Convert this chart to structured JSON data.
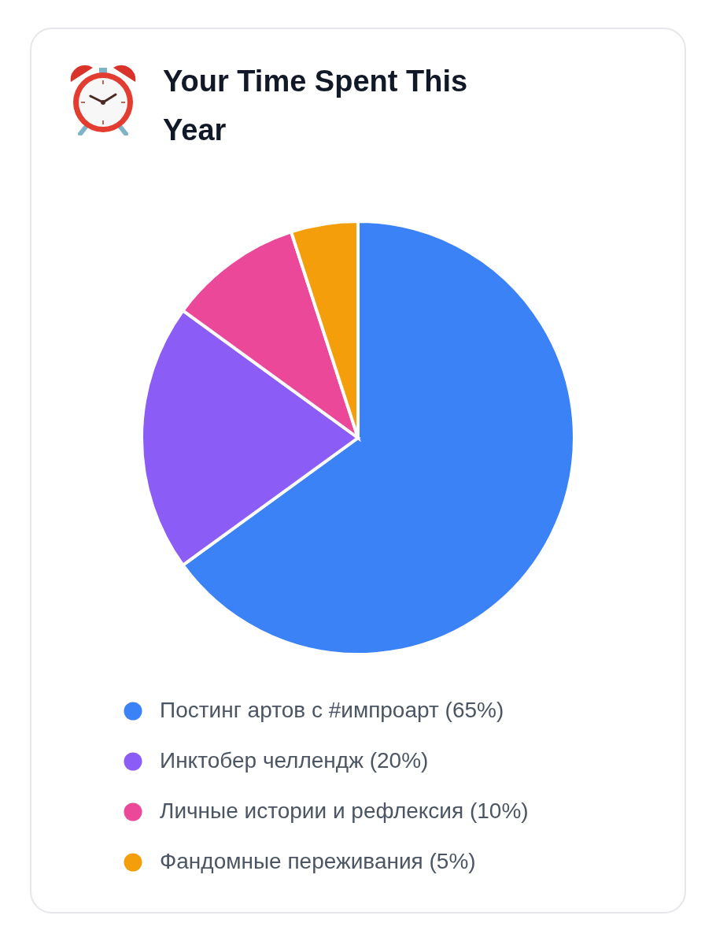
{
  "chart_data": {
    "type": "pie",
    "title": "Your Time Spent This Year",
    "categories": [
      "Постинг артов с #импроарт (65%)",
      "Инктобер челлендж (20%)",
      "Личные истории и рефлексия (10%)",
      "Фандомные переживания (5%)"
    ],
    "values": [
      65,
      20,
      10,
      5
    ],
    "colors": [
      "#3b82f6",
      "#8b5cf6",
      "#ec4899",
      "#f59e0b"
    ],
    "legend": "bottom"
  }
}
